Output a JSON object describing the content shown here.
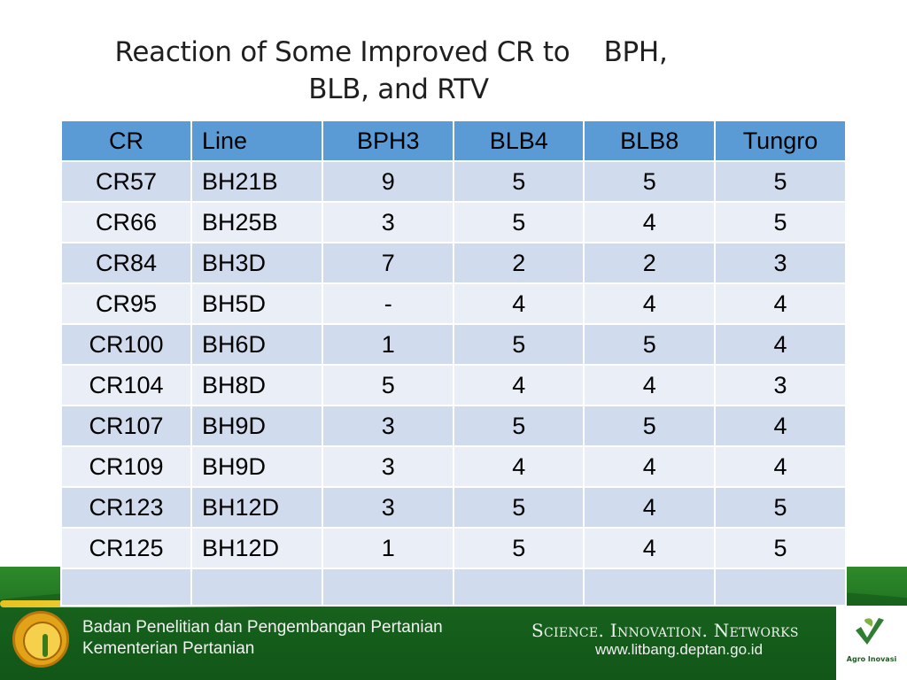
{
  "title": {
    "line1": "Reaction of Some Improved CR to    BPH,",
    "line2": "BLB, and RTV"
  },
  "table": {
    "headers": [
      "CR",
      "Line",
      "BPH3",
      "BLB4",
      "BLB8",
      "Tungro"
    ],
    "rows": [
      [
        "CR57",
        "BH21B",
        "9",
        "5",
        "5",
        "5"
      ],
      [
        "CR66",
        "BH25B",
        "3",
        "5",
        "4",
        "5"
      ],
      [
        "CR84",
        "BH3D",
        "7",
        "2",
        "2",
        "3"
      ],
      [
        "CR95",
        "BH5D",
        "-",
        "4",
        "4",
        "4"
      ],
      [
        "CR100",
        "BH6D",
        "1",
        "5",
        "5",
        "4"
      ],
      [
        "CR104",
        "BH8D",
        "5",
        "4",
        "4",
        "3"
      ],
      [
        "CR107",
        "BH9D",
        "3",
        "5",
        "5",
        "4"
      ],
      [
        "CR109",
        "BH9D",
        "3",
        "4",
        "4",
        "4"
      ],
      [
        "CR123",
        "BH12D",
        "3",
        "5",
        "4",
        "5"
      ],
      [
        "CR125",
        "BH12D",
        "1",
        "5",
        "4",
        "5"
      ],
      [
        "",
        "",
        "",
        "",
        "",
        ""
      ]
    ]
  },
  "footer": {
    "org_line1": "Badan Penelitian dan Pengembangan Pertanian",
    "org_line2": "Kementerian Pertanian",
    "tagline": "Science. Innovation. Networks",
    "url": "www.litbang.deptan.go.id",
    "logo_right_caption": "Agro Inovasi",
    "logo_left_icon": "ministry-seal-icon",
    "logo_right_icon": "agro-inovasi-logo-icon"
  },
  "colors": {
    "header_fill": "#5b9bd5",
    "row_odd": "#d0dcee",
    "row_even": "#e9eef7",
    "footer_green": "#1d6e1f"
  }
}
